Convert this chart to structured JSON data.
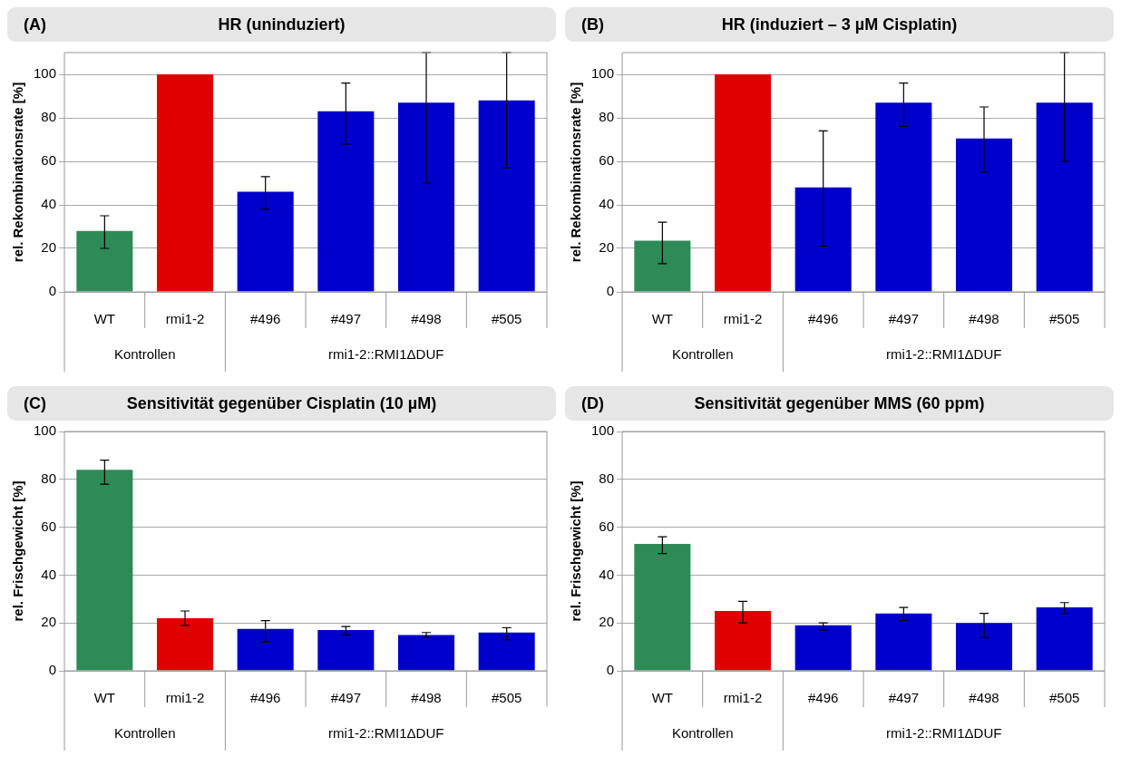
{
  "chart_data": [
    {
      "type": "bar",
      "title": "(A) HR (uninduziert)",
      "ylabel": "rel. Rekombinationsrate [%]",
      "categories": [
        "WT",
        "rmi1-2",
        "#496",
        "#497",
        "#498",
        "#505"
      ],
      "values": [
        28,
        100,
        46,
        83,
        87,
        88
      ],
      "errors": [
        [
          20,
          35
        ],
        null,
        [
          38,
          53
        ],
        [
          68,
          96
        ],
        [
          50,
          110
        ],
        [
          57,
          110
        ]
      ],
      "colors": [
        "#2e8b57",
        "#e00000",
        "#0000cc",
        "#0000cc",
        "#0000cc",
        "#0000cc"
      ],
      "ylim": [
        0,
        110
      ],
      "yticks": [
        0,
        20,
        40,
        60,
        80,
        100
      ],
      "grid": "y",
      "legend": false,
      "annotations": [
        "Kontrollen",
        "rmi1-2::RMI1ΔDUF"
      ]
    },
    {
      "type": "bar",
      "title": "(B) HR (induziert – 3 µM Cisplatin)",
      "ylabel": "rel. Rekombinationsrate [%]",
      "categories": [
        "WT",
        "rmi1-2",
        "#496",
        "#497",
        "#498",
        "#505"
      ],
      "values": [
        23.5,
        100,
        48,
        87,
        70.5,
        87
      ],
      "errors": [
        [
          13,
          32
        ],
        null,
        [
          21,
          74
        ],
        [
          76,
          96
        ],
        [
          55,
          85
        ],
        [
          60,
          110
        ]
      ],
      "colors": [
        "#2e8b57",
        "#e00000",
        "#0000cc",
        "#0000cc",
        "#0000cc",
        "#0000cc"
      ],
      "ylim": [
        0,
        110
      ],
      "yticks": [
        0,
        20,
        40,
        60,
        80,
        100
      ],
      "grid": "y",
      "legend": false,
      "annotations": [
        "Kontrollen",
        "rmi1-2::RMI1ΔDUF"
      ]
    },
    {
      "type": "bar",
      "title": "(C) Sensitivität gegenüber Cisplatin (10 µM)",
      "ylabel": "rel. Frischgewicht [%]",
      "categories": [
        "WT",
        "rmi1-2",
        "#496",
        "#497",
        "#498",
        "#505"
      ],
      "values": [
        84,
        22,
        17.5,
        17,
        15,
        16
      ],
      "errors": [
        [
          78,
          88
        ],
        [
          19,
          25
        ],
        [
          12,
          21
        ],
        [
          15,
          18.5
        ],
        [
          14,
          16
        ],
        [
          13,
          18
        ]
      ],
      "colors": [
        "#2e8b57",
        "#e00000",
        "#0000cc",
        "#0000cc",
        "#0000cc",
        "#0000cc"
      ],
      "ylim": [
        0,
        100
      ],
      "yticks": [
        0,
        20,
        40,
        60,
        80,
        100
      ],
      "grid": "y",
      "legend": false,
      "annotations": [
        "Kontrollen",
        "rmi1-2::RMI1ΔDUF"
      ]
    },
    {
      "type": "bar",
      "title": "(D) Sensitivität gegenüber MMS (60 ppm)",
      "ylabel": "rel. Frischgewicht [%]",
      "categories": [
        "WT",
        "rmi1-2",
        "#496",
        "#497",
        "#498",
        "#505"
      ],
      "values": [
        53,
        25,
        19,
        24,
        20,
        26.5
      ],
      "errors": [
        [
          49,
          56
        ],
        [
          20,
          29
        ],
        [
          17,
          20
        ],
        [
          21,
          26.5
        ],
        [
          14,
          24
        ],
        [
          24,
          28.5
        ]
      ],
      "colors": [
        "#2e8b57",
        "#e00000",
        "#0000cc",
        "#0000cc",
        "#0000cc",
        "#0000cc"
      ],
      "ylim": [
        0,
        100
      ],
      "yticks": [
        0,
        20,
        40,
        60,
        80,
        100
      ],
      "grid": "y",
      "legend": false,
      "annotations": [
        "Kontrollen",
        "rmi1-2::RMI1ΔDUF"
      ]
    }
  ]
}
